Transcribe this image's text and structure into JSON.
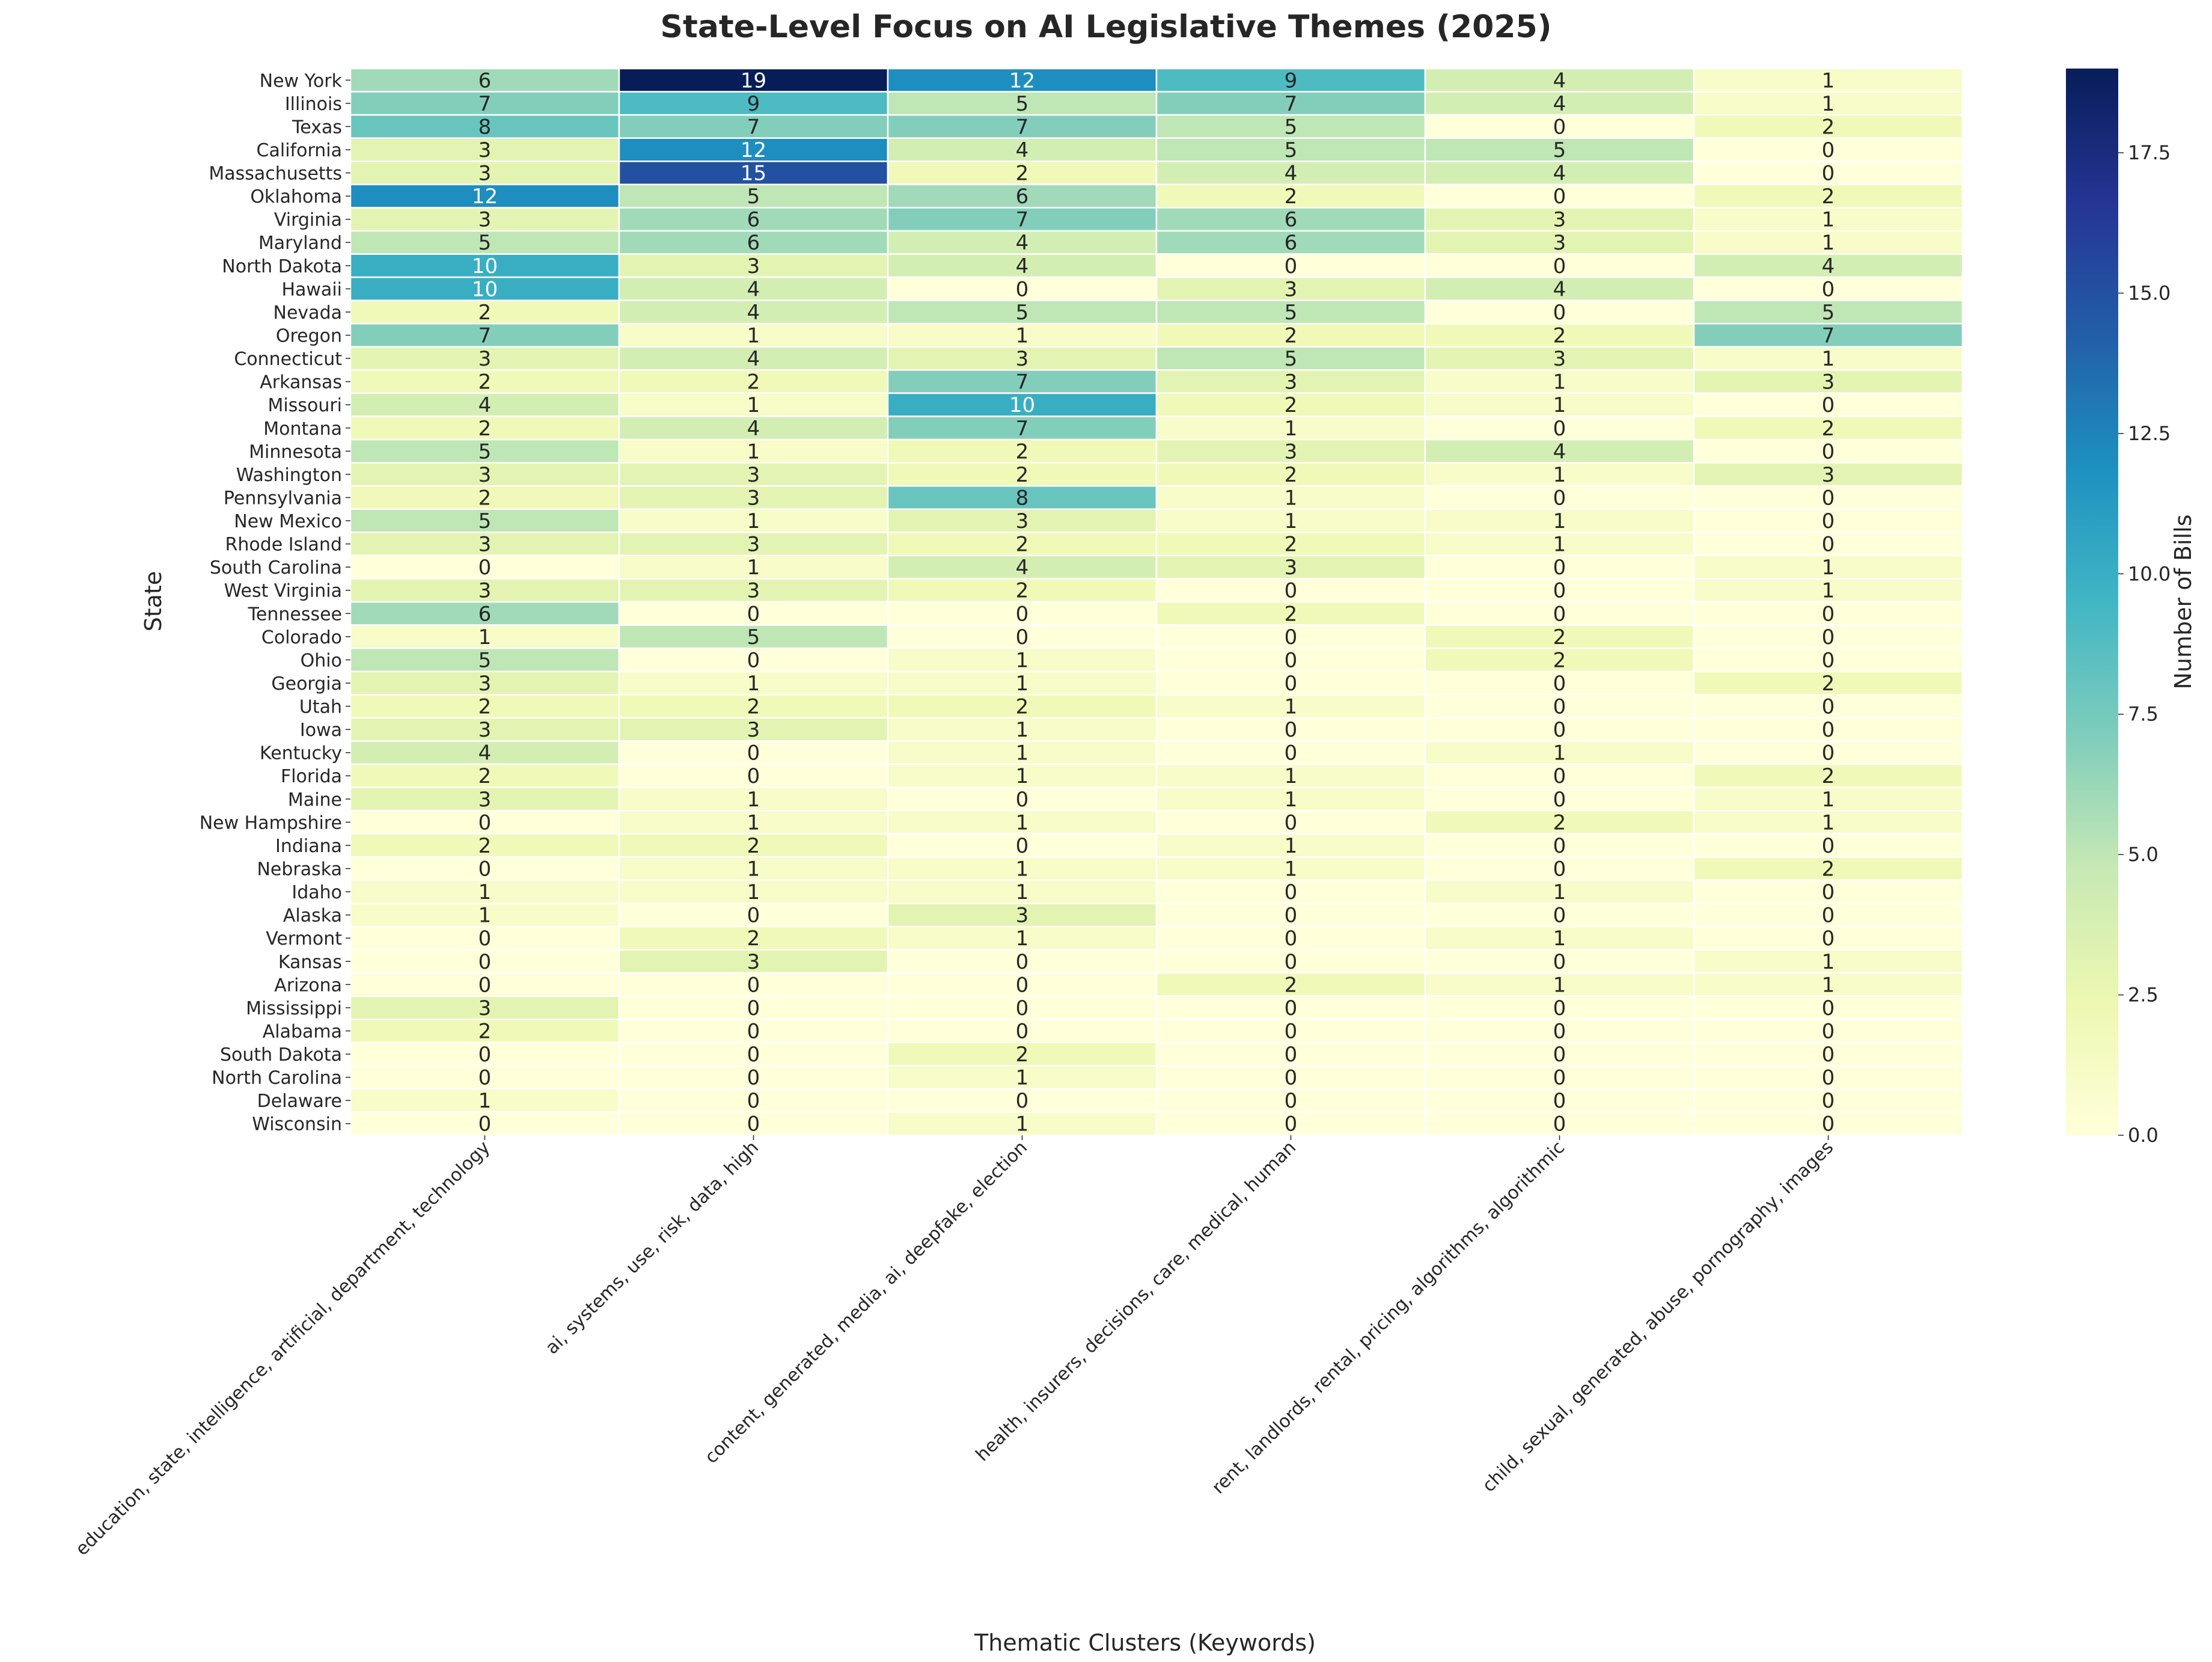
{
  "chart_data": {
    "type": "heatmap",
    "title": "State-Level Focus on AI Legislative Themes (2025)",
    "xlabel": "Thematic Clusters (Keywords)",
    "ylabel": "State",
    "colorbar_label": "Number of Bills",
    "colormap": "YlGnBu",
    "vmin": 0,
    "vmax": 19,
    "colorbar_ticks": [
      "0.0",
      "2.5",
      "5.0",
      "7.5",
      "10.0",
      "12.5",
      "15.0",
      "17.5"
    ],
    "x_categories": [
      "education, state, intelligence, artificial, department, technology",
      "ai, systems, use, risk, data, high",
      "content, generated, media, ai, deepfake, election",
      "health, insurers, decisions, care, medical, human",
      "rent, landlords, rental, pricing, algorithms, algorithmic",
      "child, sexual, generated, abuse, pornography, images"
    ],
    "y_categories": [
      "New York",
      "Illinois",
      "Texas",
      "California",
      "Massachusetts",
      "Oklahoma",
      "Virginia",
      "Maryland",
      "North Dakota",
      "Hawaii",
      "Nevada",
      "Oregon",
      "Connecticut",
      "Arkansas",
      "Missouri",
      "Montana",
      "Minnesota",
      "Washington",
      "Pennsylvania",
      "New Mexico",
      "Rhode Island",
      "South Carolina",
      "West Virginia",
      "Tennessee",
      "Colorado",
      "Ohio",
      "Georgia",
      "Utah",
      "Iowa",
      "Kentucky",
      "Florida",
      "Maine",
      "New Hampshire",
      "Indiana",
      "Nebraska",
      "Idaho",
      "Alaska",
      "Vermont",
      "Kansas",
      "Arizona",
      "Mississippi",
      "Alabama",
      "South Dakota",
      "North Carolina",
      "Delaware",
      "Wisconsin"
    ],
    "values": [
      [
        6,
        19,
        12,
        9,
        4,
        1
      ],
      [
        7,
        9,
        5,
        7,
        4,
        1
      ],
      [
        8,
        7,
        7,
        5,
        0,
        2
      ],
      [
        3,
        12,
        4,
        5,
        5,
        0
      ],
      [
        3,
        15,
        2,
        4,
        4,
        0
      ],
      [
        12,
        5,
        6,
        2,
        0,
        2
      ],
      [
        3,
        6,
        7,
        6,
        3,
        1
      ],
      [
        5,
        6,
        4,
        6,
        3,
        1
      ],
      [
        10,
        3,
        4,
        0,
        0,
        4
      ],
      [
        10,
        4,
        0,
        3,
        4,
        0
      ],
      [
        2,
        4,
        5,
        5,
        0,
        5
      ],
      [
        7,
        1,
        1,
        2,
        2,
        7
      ],
      [
        3,
        4,
        3,
        5,
        3,
        1
      ],
      [
        2,
        2,
        7,
        3,
        1,
        3
      ],
      [
        4,
        1,
        10,
        2,
        1,
        0
      ],
      [
        2,
        4,
        7,
        1,
        0,
        2
      ],
      [
        5,
        1,
        2,
        3,
        4,
        0
      ],
      [
        3,
        3,
        2,
        2,
        1,
        3
      ],
      [
        2,
        3,
        8,
        1,
        0,
        0
      ],
      [
        5,
        1,
        3,
        1,
        1,
        0
      ],
      [
        3,
        3,
        2,
        2,
        1,
        0
      ],
      [
        0,
        1,
        4,
        3,
        0,
        1
      ],
      [
        3,
        3,
        2,
        0,
        0,
        1
      ],
      [
        6,
        0,
        0,
        2,
        0,
        0
      ],
      [
        1,
        5,
        0,
        0,
        2,
        0
      ],
      [
        5,
        0,
        1,
        0,
        2,
        0
      ],
      [
        3,
        1,
        1,
        0,
        0,
        2
      ],
      [
        2,
        2,
        2,
        1,
        0,
        0
      ],
      [
        3,
        3,
        1,
        0,
        0,
        0
      ],
      [
        4,
        0,
        1,
        0,
        1,
        0
      ],
      [
        2,
        0,
        1,
        1,
        0,
        2
      ],
      [
        3,
        1,
        0,
        1,
        0,
        1
      ],
      [
        0,
        1,
        1,
        0,
        2,
        1
      ],
      [
        2,
        2,
        0,
        1,
        0,
        0
      ],
      [
        0,
        1,
        1,
        1,
        0,
        2
      ],
      [
        1,
        1,
        1,
        0,
        1,
        0
      ],
      [
        1,
        0,
        3,
        0,
        0,
        0
      ],
      [
        0,
        2,
        1,
        0,
        1,
        0
      ],
      [
        0,
        3,
        0,
        0,
        0,
        1
      ],
      [
        0,
        0,
        0,
        2,
        1,
        1
      ],
      [
        3,
        0,
        0,
        0,
        0,
        0
      ],
      [
        2,
        0,
        0,
        0,
        0,
        0
      ],
      [
        0,
        0,
        2,
        0,
        0,
        0
      ],
      [
        0,
        0,
        1,
        0,
        0,
        0
      ],
      [
        1,
        0,
        0,
        0,
        0,
        0
      ],
      [
        0,
        0,
        1,
        0,
        0,
        0
      ]
    ]
  }
}
